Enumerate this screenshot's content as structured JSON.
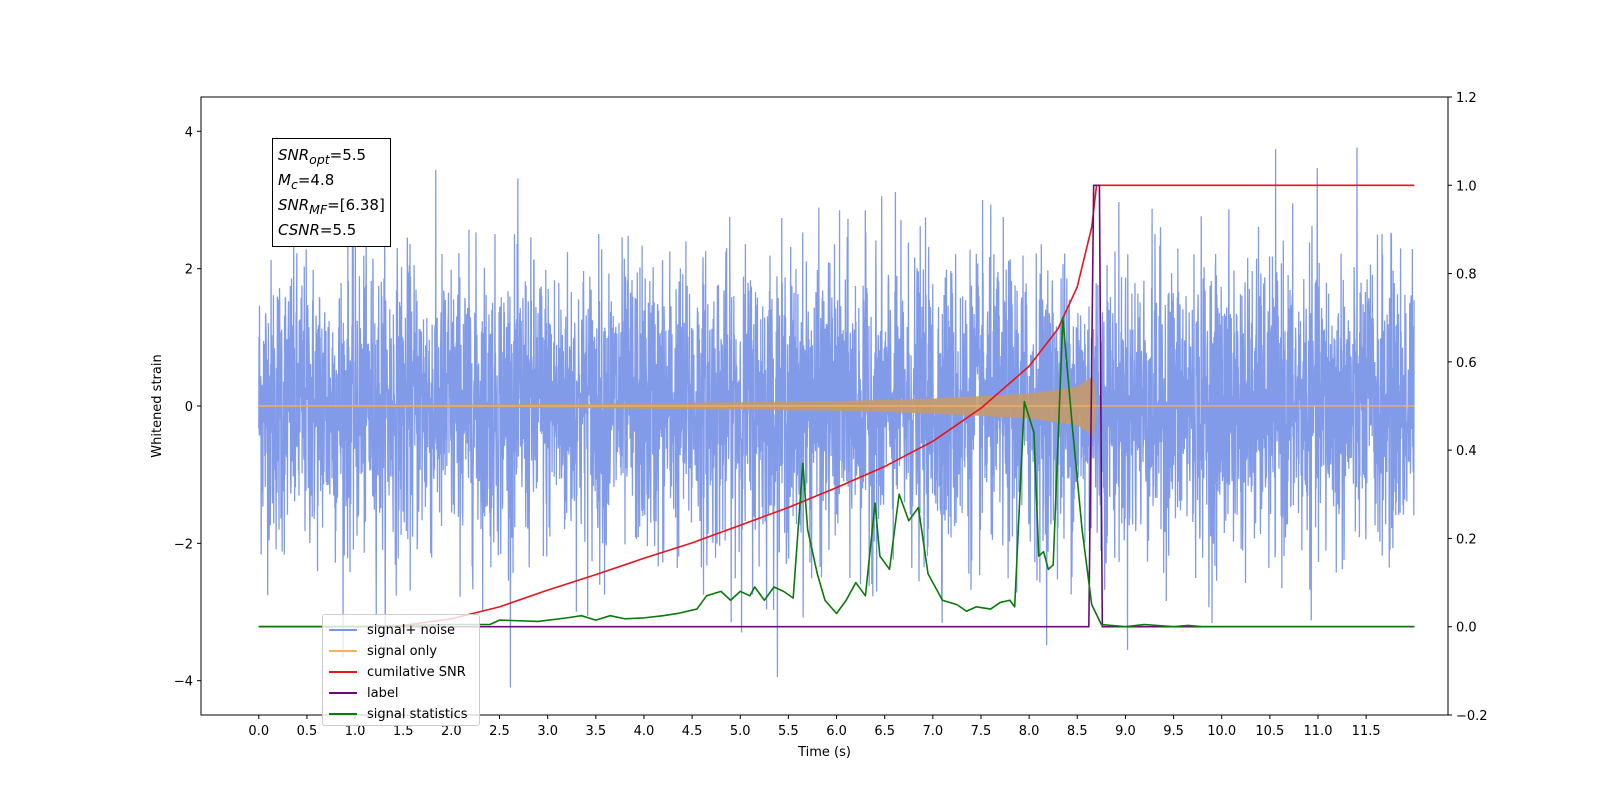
{
  "chart_data": {
    "type": "line",
    "xlabel": "Time (s)",
    "ylabel_left": "Whitened strain",
    "ylabel_right": "",
    "x_ticks": [
      "0.0",
      "0.5",
      "1.0",
      "1.5",
      "2.0",
      "2.5",
      "3.0",
      "3.5",
      "4.0",
      "4.5",
      "5.0",
      "5.5",
      "6.0",
      "6.5",
      "7.0",
      "7.5",
      "8.0",
      "8.5",
      "9.0",
      "9.5",
      "10.0",
      "10.5",
      "11.0",
      "11.5"
    ],
    "y_left_ticks": [
      "4",
      "2",
      "0",
      "−2",
      "−4"
    ],
    "y_right_ticks": [
      "1.2",
      "1.0",
      "0.8",
      "0.6",
      "0.4",
      "0.2",
      "0.0",
      "−0.2"
    ],
    "xlim": [
      -0.6,
      12.35
    ],
    "ylim_left": [
      -4.5,
      4.5
    ],
    "ylim_right": [
      -0.2,
      1.2
    ],
    "grid": false,
    "legend_position": "lower-left",
    "annotation_lines": [
      {
        "var": "SNR",
        "sub": "opt",
        "rest": "=5.5"
      },
      {
        "var": "M",
        "sub": "c",
        "rest": "=4.8"
      },
      {
        "var": "SNR",
        "sub": "MF",
        "rest": "=[6.38]"
      },
      {
        "var": "CSNR",
        "sub": "",
        "rest": "=5.5"
      }
    ],
    "series": [
      {
        "name": "signal+ noise",
        "color": "#7b96e8",
        "axis": "left",
        "description_values": {
          "x_range": [
            0.0,
            12.0
          ],
          "approx_amplitude": 2.5,
          "max": 4.1,
          "min": -4.1
        }
      },
      {
        "name": "signal only",
        "color": "#f5b25a",
        "axis": "left",
        "envelope": {
          "x": [
            0.0,
            2.0,
            4.0,
            6.0,
            7.0,
            8.0,
            8.5,
            8.68,
            8.7,
            12.0
          ],
          "amp": [
            0.01,
            0.02,
            0.04,
            0.07,
            0.11,
            0.18,
            0.28,
            0.45,
            0.01,
            0.0
          ]
        }
      },
      {
        "name": "cumilative SNR",
        "color": "#e8141c",
        "axis": "right",
        "x": [
          0.0,
          1.0,
          1.5,
          2.0,
          2.5,
          3.0,
          3.5,
          4.0,
          4.5,
          5.0,
          5.5,
          6.0,
          6.5,
          7.0,
          7.5,
          8.0,
          8.3,
          8.5,
          8.65,
          8.7,
          12.0
        ],
        "values": [
          0.0,
          0.0,
          0.003,
          0.018,
          0.045,
          0.083,
          0.118,
          0.155,
          0.19,
          0.23,
          0.27,
          0.315,
          0.363,
          0.42,
          0.495,
          0.59,
          0.675,
          0.77,
          0.905,
          1.0,
          1.0
        ]
      },
      {
        "name": "label",
        "color": "#6b0a78",
        "axis": "right",
        "x": [
          0.0,
          8.62,
          8.67,
          8.73,
          8.76,
          12.0
        ],
        "values": [
          0.0,
          0.0,
          1.0,
          1.0,
          0.0,
          0.0
        ]
      },
      {
        "name": "signal statistics",
        "color": "#0a7a0a",
        "axis": "right",
        "x": [
          0.0,
          1.0,
          2.0,
          2.4,
          2.5,
          2.9,
          3.2,
          3.35,
          3.5,
          3.65,
          3.8,
          4.0,
          4.2,
          4.35,
          4.55,
          4.65,
          4.8,
          4.9,
          5.0,
          5.1,
          5.15,
          5.25,
          5.35,
          5.45,
          5.55,
          5.65,
          5.7,
          5.8,
          5.88,
          6.0,
          6.1,
          6.2,
          6.3,
          6.4,
          6.45,
          6.55,
          6.65,
          6.75,
          6.85,
          6.95,
          7.1,
          7.25,
          7.35,
          7.45,
          7.6,
          7.7,
          7.8,
          7.85,
          7.95,
          8.05,
          8.1,
          8.15,
          8.2,
          8.25,
          8.35,
          8.45,
          8.55,
          8.65,
          8.75,
          9.0,
          9.2,
          9.5,
          9.65,
          9.8,
          10.0,
          12.0
        ],
        "values": [
          0.0,
          0.0,
          0.005,
          0.005,
          0.015,
          0.012,
          0.02,
          0.025,
          0.015,
          0.025,
          0.018,
          0.02,
          0.025,
          0.03,
          0.04,
          0.07,
          0.08,
          0.06,
          0.08,
          0.07,
          0.09,
          0.06,
          0.09,
          0.08,
          0.065,
          0.37,
          0.22,
          0.12,
          0.06,
          0.03,
          0.06,
          0.1,
          0.07,
          0.28,
          0.16,
          0.13,
          0.3,
          0.24,
          0.27,
          0.12,
          0.06,
          0.05,
          0.035,
          0.045,
          0.04,
          0.055,
          0.06,
          0.045,
          0.51,
          0.44,
          0.16,
          0.17,
          0.13,
          0.14,
          0.7,
          0.45,
          0.22,
          0.05,
          0.005,
          0.0,
          0.005,
          0.0,
          0.003,
          0.0,
          0.0,
          0.0
        ]
      }
    ]
  }
}
